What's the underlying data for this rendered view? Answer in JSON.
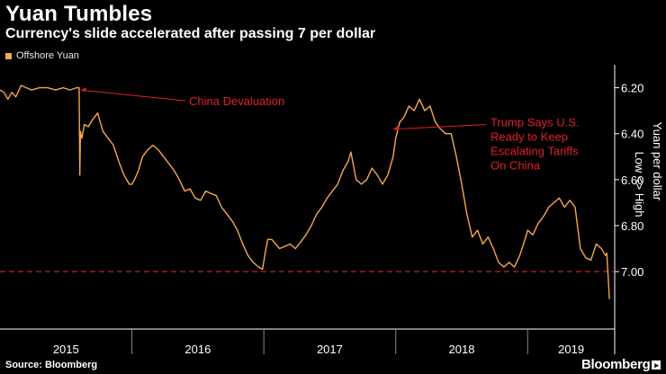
{
  "title": "Yuan Tumbles",
  "subtitle": "Currency's slide accelerated after passing 7 per dollar",
  "source": "Source: Bloomberg",
  "brand": "Bloomberg",
  "colors": {
    "line": "#f5a84c",
    "threshold": "#e0202a",
    "annotation": "#e0202a"
  },
  "chart_data": {
    "type": "line",
    "title": "Yuan Tumbles",
    "subtitle": "Currency's slide accelerated after passing 7 per dollar",
    "legend": [
      "Offshore Yuan"
    ],
    "ylabel": "Yuan per dollar",
    "ylabel_note": "Low <> High",
    "y_inverted": true,
    "ylim": [
      6.1,
      7.25
    ],
    "y_ticks": [
      6.2,
      6.4,
      6.6,
      6.8,
      7.0
    ],
    "y_tick_labels": [
      "6.20",
      "6.40",
      "6.60",
      "6.80",
      "7.00"
    ],
    "xlim": [
      2015.0,
      2019.66
    ],
    "x_year_labels": [
      "2015",
      "2016",
      "2017",
      "2018",
      "2019"
    ],
    "x_year_dividers": [
      2016,
      2017,
      2018,
      2019
    ],
    "threshold": 7.0,
    "series": [
      {
        "name": "Offshore Yuan",
        "x": [
          2015.0,
          2015.03,
          2015.06,
          2015.09,
          2015.12,
          2015.16,
          2015.2,
          2015.24,
          2015.3,
          2015.36,
          2015.42,
          2015.48,
          2015.53,
          2015.58,
          2015.6,
          2015.605,
          2015.61,
          2015.62,
          2015.64,
          2015.67,
          2015.7,
          2015.74,
          2015.78,
          2015.82,
          2015.86,
          2015.9,
          2015.94,
          2015.98,
          2016.0,
          2016.02,
          2016.05,
          2016.08,
          2016.12,
          2016.16,
          2016.2,
          2016.24,
          2016.28,
          2016.32,
          2016.36,
          2016.4,
          2016.44,
          2016.48,
          2016.52,
          2016.56,
          2016.6,
          2016.64,
          2016.68,
          2016.72,
          2016.76,
          2016.8,
          2016.84,
          2016.88,
          2016.92,
          2016.96,
          2016.99,
          2017.01,
          2017.03,
          2017.06,
          2017.09,
          2017.12,
          2017.16,
          2017.2,
          2017.24,
          2017.28,
          2017.32,
          2017.36,
          2017.4,
          2017.44,
          2017.48,
          2017.52,
          2017.56,
          2017.6,
          2017.64,
          2017.66,
          2017.7,
          2017.74,
          2017.78,
          2017.82,
          2017.86,
          2017.9,
          2017.94,
          2017.98,
          2018.0,
          2018.03,
          2018.06,
          2018.1,
          2018.14,
          2018.18,
          2018.22,
          2018.26,
          2018.3,
          2018.34,
          2018.38,
          2018.42,
          2018.46,
          2018.5,
          2018.54,
          2018.58,
          2018.62,
          2018.66,
          2018.7,
          2018.74,
          2018.78,
          2018.82,
          2018.86,
          2018.9,
          2018.94,
          2018.98,
          2019.0,
          2019.04,
          2019.08,
          2019.12,
          2019.16,
          2019.2,
          2019.24,
          2019.28,
          2019.32,
          2019.36,
          2019.4,
          2019.44,
          2019.48,
          2019.52,
          2019.56,
          2019.59,
          2019.6,
          2019.61,
          2019.62
        ],
        "values": [
          6.21,
          6.22,
          6.25,
          6.22,
          6.24,
          6.19,
          6.2,
          6.21,
          6.2,
          6.2,
          6.21,
          6.2,
          6.21,
          6.2,
          6.2,
          6.58,
          6.39,
          6.42,
          6.36,
          6.37,
          6.34,
          6.31,
          6.39,
          6.42,
          6.45,
          6.52,
          6.58,
          6.62,
          6.62,
          6.6,
          6.56,
          6.5,
          6.47,
          6.45,
          6.47,
          6.5,
          6.53,
          6.56,
          6.6,
          6.65,
          6.64,
          6.68,
          6.69,
          6.65,
          6.66,
          6.67,
          6.72,
          6.75,
          6.78,
          6.82,
          6.88,
          6.93,
          6.96,
          6.98,
          6.99,
          6.92,
          6.86,
          6.86,
          6.88,
          6.9,
          6.89,
          6.88,
          6.9,
          6.87,
          6.84,
          6.8,
          6.75,
          6.72,
          6.68,
          6.65,
          6.62,
          6.56,
          6.52,
          6.48,
          6.6,
          6.62,
          6.6,
          6.55,
          6.58,
          6.62,
          6.58,
          6.5,
          6.42,
          6.35,
          6.33,
          6.28,
          6.3,
          6.25,
          6.3,
          6.28,
          6.35,
          6.38,
          6.4,
          6.4,
          6.5,
          6.62,
          6.75,
          6.85,
          6.82,
          6.88,
          6.85,
          6.9,
          6.96,
          6.98,
          6.96,
          6.98,
          6.93,
          6.86,
          6.82,
          6.84,
          6.79,
          6.76,
          6.72,
          6.7,
          6.68,
          6.72,
          6.69,
          6.72,
          6.9,
          6.94,
          6.95,
          6.88,
          6.9,
          6.93,
          6.92,
          7.02,
          7.12
        ]
      }
    ],
    "annotations": [
      {
        "text": "China Devaluation",
        "x": 2015.6,
        "y": 6.21
      },
      {
        "text": "Trump Says U.S. Ready to Keep Escalating Tariffs On China",
        "lines": [
          "Trump Says U.S.",
          "Ready to Keep",
          "Escalating Tariffs",
          "On China"
        ],
        "x": 2017.96,
        "y": 6.38
      }
    ]
  }
}
